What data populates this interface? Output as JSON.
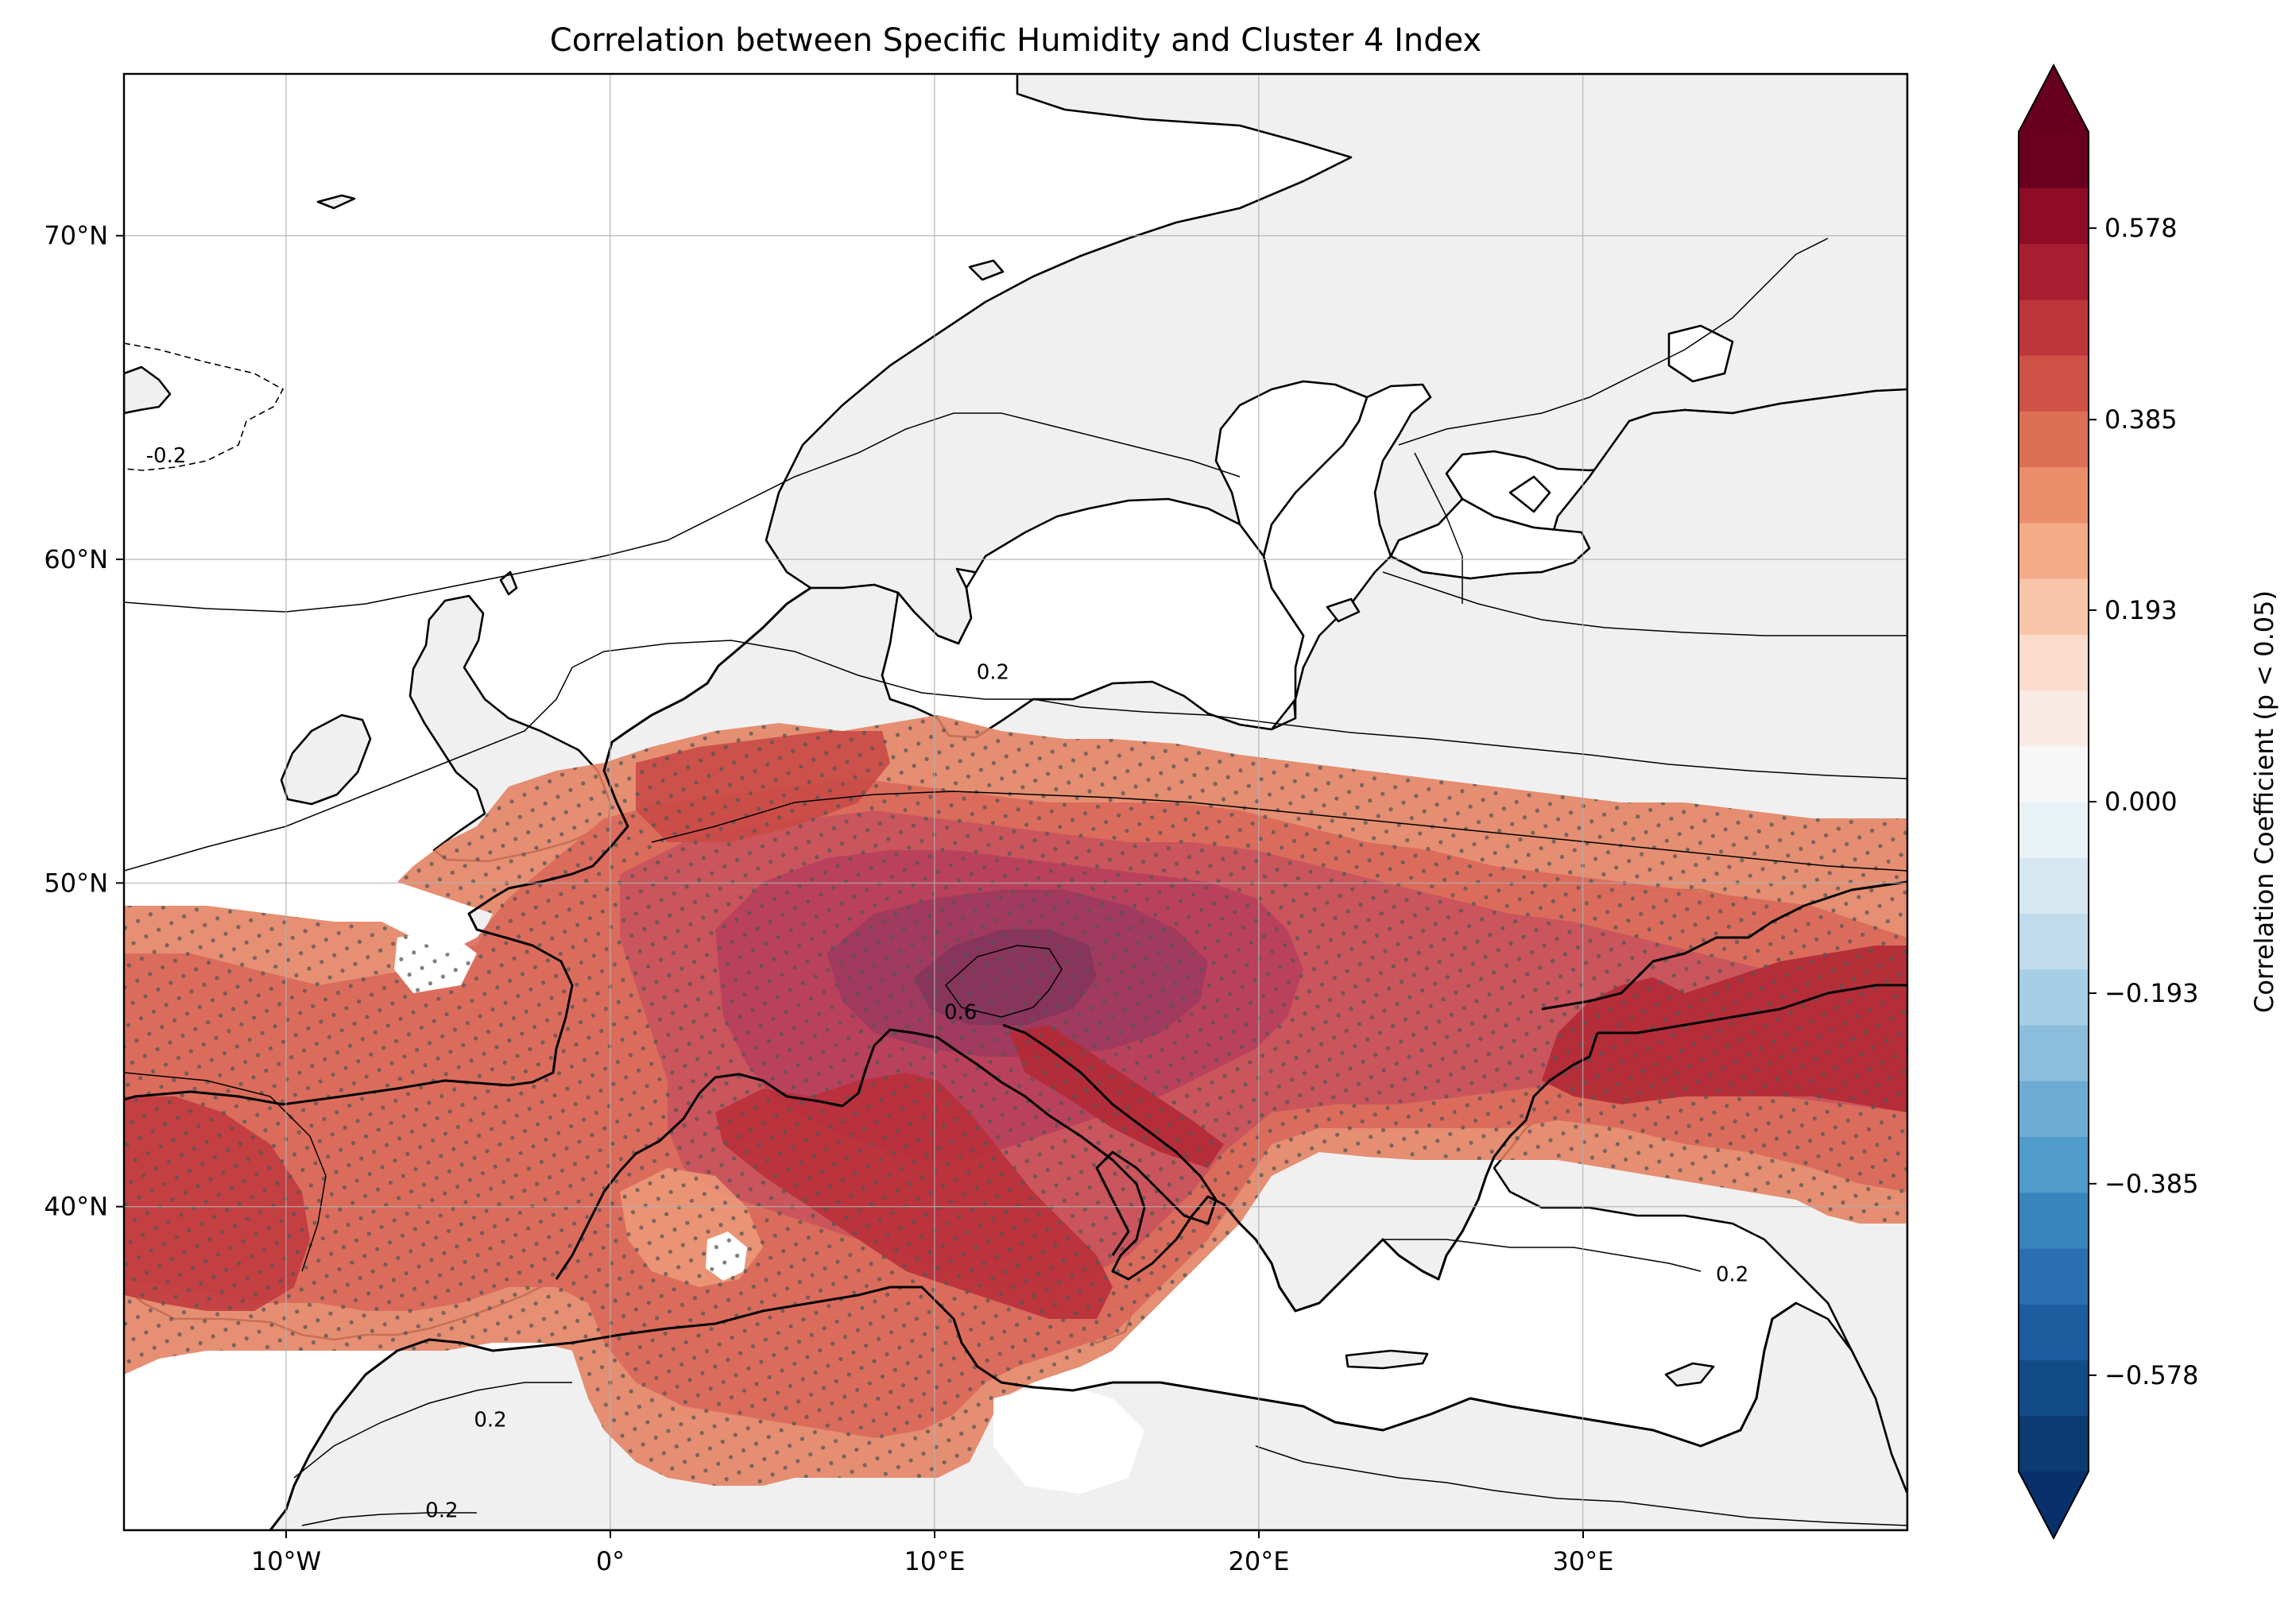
{
  "figure": {
    "title": "Correlation between Specific Humidity and Cluster 4 Index"
  },
  "map": {
    "extent": {
      "lon": [
        -15,
        40
      ],
      "lat": [
        30,
        75
      ]
    },
    "lon_ticks": [
      {
        "value": -10,
        "label": "10°W"
      },
      {
        "value": 0,
        "label": "0°"
      },
      {
        "value": 10,
        "label": "10°E"
      },
      {
        "value": 20,
        "label": "20°E"
      },
      {
        "value": 30,
        "label": "30°E"
      }
    ],
    "lat_ticks": [
      {
        "value": 40,
        "label": "40°N"
      },
      {
        "value": 50,
        "label": "50°N"
      },
      {
        "value": 60,
        "label": "60°N"
      },
      {
        "value": 70,
        "label": "70°N"
      }
    ],
    "grid": true,
    "land_color": "#f0f0f0",
    "ocean_color": "#ffffff",
    "contour_labels": [
      {
        "text": "-0.2",
        "lon": -13.7,
        "lat": 63.0
      },
      {
        "text": "0.2",
        "lon": 11.8,
        "lat": 56.3
      },
      {
        "text": "0.6",
        "lon": 10.8,
        "lat": 45.8
      },
      {
        "text": "0.2",
        "lon": 34.6,
        "lat": 37.7
      },
      {
        "text": "0.2",
        "lon": -3.7,
        "lat": 33.2
      },
      {
        "text": "0.2",
        "lon": -5.2,
        "lat": 30.4
      }
    ],
    "stippling": "p < 0.05"
  },
  "colorbar": {
    "label": "Correlation Coefficient (p < 0.05)",
    "min": -0.675,
    "max": 0.675,
    "levels": 28,
    "extend": "both",
    "tick_values": [
      -0.578,
      -0.385,
      -0.193,
      0.0,
      0.193,
      0.385,
      0.578
    ],
    "tick_labels": [
      "−0.578",
      "−0.385",
      "−0.193",
      "0.000",
      "0.193",
      "0.385",
      "0.578"
    ],
    "colors": [
      "#0b3b70",
      "#134b87",
      "#1c5da0",
      "#2a6fb1",
      "#3884bd",
      "#4f9bca",
      "#6dabd3",
      "#8bbddc",
      "#a6cee4",
      "#c0dcec",
      "#d6e7f1",
      "#e8f1f6",
      "#f7f7f7",
      "#f9eae3",
      "#fbdccc",
      "#f8c5a9",
      "#f4ab88",
      "#ea8d6b",
      "#dc6f55",
      "#cf5247",
      "#be353c",
      "#a81d30",
      "#8f0c26",
      "#6a0020"
    ],
    "under_color": "#08306b",
    "over_color": "#67001f"
  }
}
